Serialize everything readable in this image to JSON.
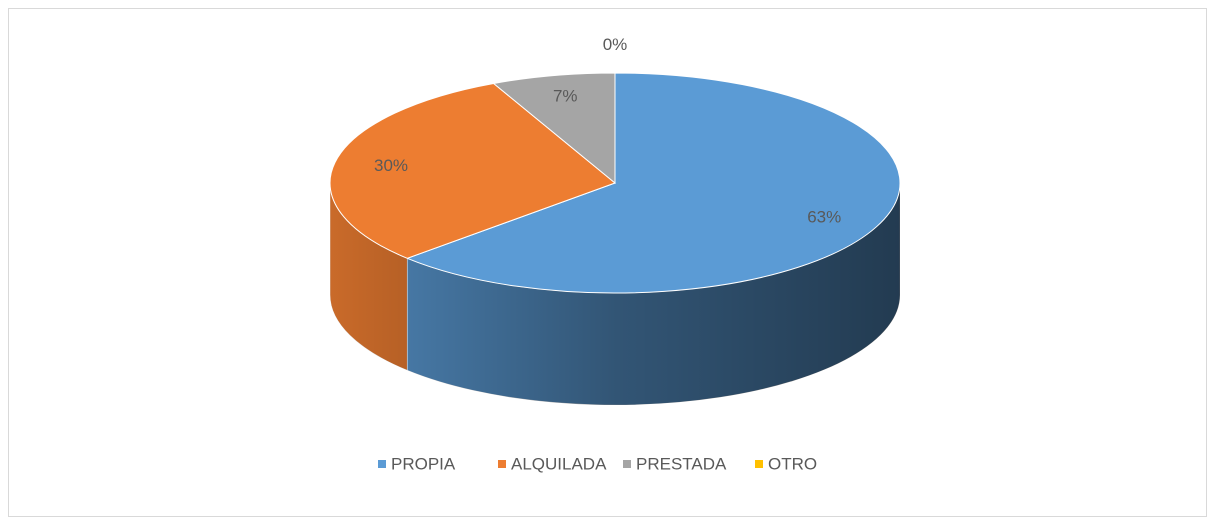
{
  "chart_data": {
    "type": "pie",
    "categories": [
      "PROPIA",
      "ALQUILADA",
      "PRESTADA",
      "OTRO"
    ],
    "values": [
      63,
      30,
      7,
      0
    ],
    "value_labels": [
      "63%",
      "30%",
      "7%",
      "0%"
    ],
    "colors": [
      "#5b9bd5",
      "#ed7d31",
      "#a5a5a5",
      "#ffc000"
    ],
    "legend": "bottom"
  }
}
